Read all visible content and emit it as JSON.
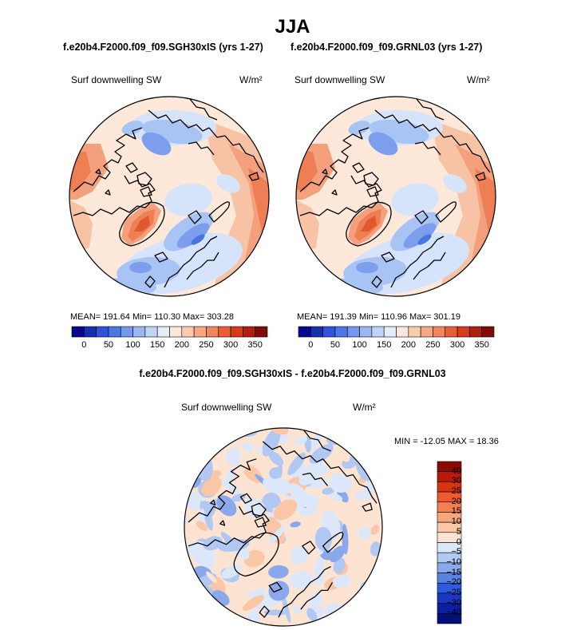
{
  "title": "JJA",
  "panels": [
    {
      "case_title": "f.e20b4.F2000.f09_f09.SGH30xIS (yrs 1-27)",
      "variable": "Surf downwelling SW",
      "units": "W/m²",
      "stats": "MEAN= 191.64   Min= 110.30   Max= 303.28"
    },
    {
      "case_title": "f.e20b4.F2000.f09_f09.GRNL03 (yrs 1-27)",
      "variable": "Surf downwelling SW",
      "units": "W/m²",
      "stats": "MEAN= 191.39   Min= 110.96   Max= 301.19"
    }
  ],
  "colorbar_top": {
    "labels": [
      "0",
      "50",
      "100",
      "150",
      "200",
      "250",
      "300",
      "350"
    ],
    "colors": [
      "#08088c",
      "#1630b0",
      "#2e55d8",
      "#4a78e6",
      "#7598ee",
      "#9cb8f2",
      "#c0d4f6",
      "#e4eefa",
      "#fde8dc",
      "#fbcbb0",
      "#f7a784",
      "#f2855c",
      "#e85e36",
      "#d43c1c",
      "#b02010",
      "#800c08"
    ]
  },
  "difference": {
    "title": "f.e20b4.F2000.f09_f09.SGH30xIS - f.e20b4.F2000.f09_f09.GRNL03",
    "variable": "Surf downwelling SW",
    "units": "W/m²",
    "stats": "MIN = -12.05  MAX =  18.36",
    "colorbar_labels": [
      "40",
      "30",
      "25",
      "20",
      "15",
      "10",
      "5",
      "0",
      "−5",
      "−10",
      "−15",
      "−20",
      "−25",
      "−30",
      "−40"
    ],
    "colorbar_colors": [
      "#8a0a04",
      "#b81a0a",
      "#d83414",
      "#ee5a2e",
      "#f48050",
      "#f7a67c",
      "#fac6a6",
      "#fde4d2",
      "#dce8fa",
      "#b0c8f2",
      "#8aa8ec",
      "#5a82e2",
      "#2e5ae0",
      "#1838c4",
      "#0a20a0",
      "#04107a"
    ]
  },
  "palette": {
    "blue_deep": "#4a74de",
    "blue_mid": "#7c9eec",
    "blue_light": "#a8c4f4",
    "blue_pale": "#d6e4fb",
    "cream": "#fde8da",
    "peach": "#f8c2a4",
    "salmon": "#f4a07c",
    "orange": "#ee7e54",
    "red": "#e0582e"
  }
}
